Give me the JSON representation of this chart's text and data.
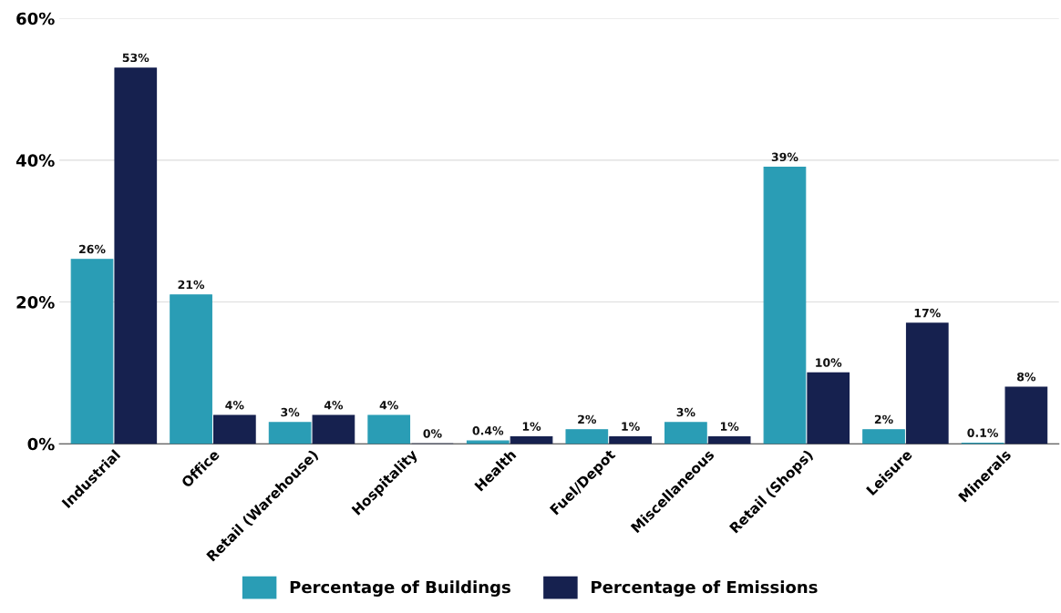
{
  "chart_data": {
    "type": "bar",
    "categories": [
      "Industrial",
      "Office",
      "Retail (Warehouse)",
      "Hospitality",
      "Health",
      "Fuel/Depot",
      "Miscellaneous",
      "Retail (Shops)",
      "Leisure",
      "Minerals"
    ],
    "series": [
      {
        "name": "Percentage of Buildings",
        "color": "#2a9db5",
        "values": [
          26,
          21,
          3,
          4,
          0.4,
          2,
          3,
          39,
          2,
          0.1
        ],
        "value_labels": [
          "26%",
          "21%",
          "3%",
          "4%",
          "0.4%",
          "2%",
          "3%",
          "39%",
          "2%",
          "0.1%"
        ]
      },
      {
        "name": "Percentage of Emissions",
        "color": "#16214f",
        "values": [
          53,
          4,
          4,
          0,
          1,
          1,
          1,
          10,
          17,
          8
        ],
        "value_labels": [
          "53%",
          "4%",
          "4%",
          "0%",
          "1%",
          "1%",
          "1%",
          "10%",
          "17%",
          "8%"
        ]
      }
    ],
    "ylim": [
      0,
      60
    ],
    "yticks": [
      {
        "value": 0,
        "label": "0%"
      },
      {
        "value": 20,
        "label": "20%"
      },
      {
        "value": 40,
        "label": "40%"
      },
      {
        "value": 60,
        "label": "60%"
      }
    ],
    "grid": "y",
    "legend": "bottom"
  }
}
